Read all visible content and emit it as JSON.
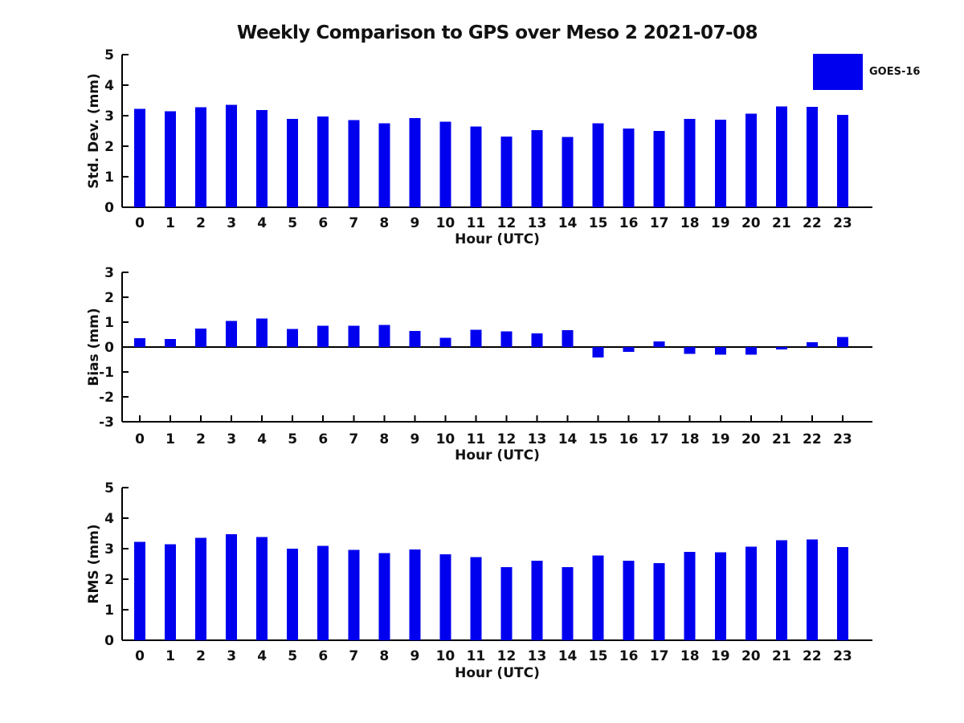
{
  "title": "Weekly Comparison to GPS over Meso 2 2021-07-08",
  "legend": {
    "label": "GOES-16",
    "color": "#0000ee"
  },
  "axis_color": "#000000",
  "text_color": "#111111",
  "chart_data": [
    {
      "type": "bar",
      "series_name": "GOES-16",
      "ylabel": "Std. Dev. (mm)",
      "xlabel": "Hour (UTC)",
      "categories": [
        "0",
        "1",
        "2",
        "3",
        "4",
        "5",
        "6",
        "7",
        "8",
        "9",
        "10",
        "11",
        "12",
        "13",
        "14",
        "15",
        "16",
        "17",
        "18",
        "19",
        "20",
        "21",
        "22",
        "23"
      ],
      "values": [
        3.22,
        3.14,
        3.27,
        3.35,
        3.19,
        2.9,
        2.98,
        2.86,
        2.75,
        2.92,
        2.8,
        2.65,
        2.32,
        2.53,
        2.3,
        2.75,
        2.58,
        2.5,
        2.9,
        2.87,
        3.06,
        3.3,
        3.29,
        3.03
      ],
      "ylim": [
        0,
        5
      ],
      "yticks": [
        0,
        1,
        2,
        3,
        4,
        5
      ],
      "grid": false,
      "legend_position": "upper-right-outside"
    },
    {
      "type": "bar",
      "series_name": "GOES-16",
      "ylabel": "Bias (mm)",
      "xlabel": "Hour (UTC)",
      "categories": [
        "0",
        "1",
        "2",
        "3",
        "4",
        "5",
        "6",
        "7",
        "8",
        "9",
        "10",
        "11",
        "12",
        "13",
        "14",
        "15",
        "16",
        "17",
        "18",
        "19",
        "20",
        "21",
        "22",
        "23"
      ],
      "values": [
        0.35,
        0.33,
        0.75,
        1.05,
        1.15,
        0.72,
        0.85,
        0.85,
        0.88,
        0.65,
        0.37,
        0.7,
        0.63,
        0.55,
        0.67,
        -0.42,
        -0.19,
        0.22,
        -0.28,
        -0.3,
        -0.3,
        -0.1,
        0.2,
        0.4
      ],
      "ylim": [
        -3,
        3
      ],
      "yticks": [
        -3,
        -2,
        -1,
        0,
        1,
        2,
        3
      ],
      "zero_line": true,
      "grid": false
    },
    {
      "type": "bar",
      "series_name": "GOES-16",
      "ylabel": "RMS (mm)",
      "xlabel": "Hour (UTC)",
      "categories": [
        "0",
        "1",
        "2",
        "3",
        "4",
        "5",
        "6",
        "7",
        "8",
        "9",
        "10",
        "11",
        "12",
        "13",
        "14",
        "15",
        "16",
        "17",
        "18",
        "19",
        "20",
        "21",
        "22",
        "23"
      ],
      "values": [
        3.22,
        3.15,
        3.35,
        3.48,
        3.38,
        3.0,
        3.09,
        2.96,
        2.86,
        2.98,
        2.81,
        2.72,
        2.39,
        2.6,
        2.39,
        2.77,
        2.6,
        2.52,
        2.9,
        2.88,
        3.06,
        3.27,
        3.3,
        3.05
      ],
      "ylim": [
        0,
        5
      ],
      "yticks": [
        0,
        1,
        2,
        3,
        4,
        5
      ],
      "grid": false
    }
  ]
}
